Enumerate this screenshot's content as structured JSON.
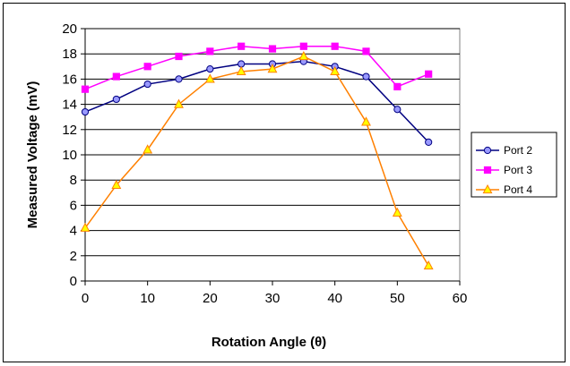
{
  "chart_data": {
    "type": "line",
    "title": "",
    "xlabel": "Rotation Angle (θ)",
    "ylabel": "Measured Voltage (mV)",
    "xlim": [
      0,
      60
    ],
    "ylim": [
      0,
      20
    ],
    "xticks": [
      "0",
      "10",
      "20",
      "30",
      "40",
      "50",
      "60"
    ],
    "yticks": [
      "0",
      "2",
      "4",
      "6",
      "8",
      "10",
      "12",
      "14",
      "16",
      "18",
      "20"
    ],
    "grid": "horizontal",
    "legend_position": "right",
    "x": [
      0,
      5,
      10,
      15,
      20,
      25,
      30,
      35,
      40,
      45,
      50,
      55
    ],
    "series": [
      {
        "name": "Port 2",
        "color": "#000080",
        "marker_fill": "#9999ff",
        "marker": "circle",
        "values": [
          13.4,
          14.4,
          15.6,
          16.0,
          16.8,
          17.2,
          17.2,
          17.4,
          17.0,
          16.2,
          13.6,
          11.0
        ]
      },
      {
        "name": "Port 3",
        "color": "#ff00ff",
        "marker_fill": "#ff00ff",
        "marker": "square",
        "values": [
          15.2,
          16.2,
          17.0,
          17.8,
          18.2,
          18.6,
          18.4,
          18.6,
          18.6,
          18.2,
          15.4,
          16.4
        ]
      },
      {
        "name": "Port 4",
        "color": "#ff8000",
        "marker_fill": "#ffff00",
        "marker": "triangle",
        "values": [
          4.2,
          7.6,
          10.4,
          14.0,
          16.0,
          16.6,
          16.8,
          17.8,
          16.6,
          12.6,
          5.4,
          1.2
        ]
      }
    ]
  }
}
